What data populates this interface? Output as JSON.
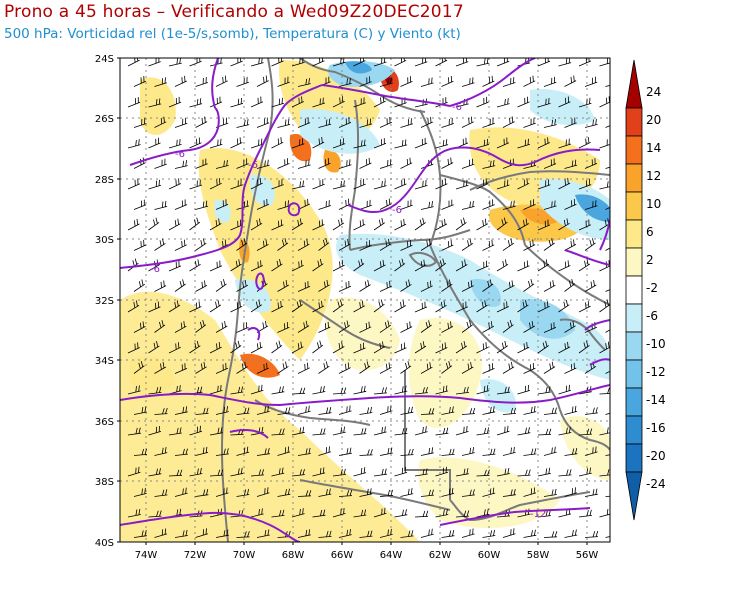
{
  "title": "Prono a 45 horas – Verificando a Wed09Z20DEC2017",
  "subtitle": "500 hPa: Vorticidad rel (1e-5/s,somb), Temperatura (C) y Viento (kt)",
  "map": {
    "lon_range": [
      -75,
      -55
    ],
    "lat_range": [
      -40,
      -24
    ],
    "lat_ticks": [
      "24S",
      "26S",
      "28S",
      "30S",
      "32S",
      "34S",
      "36S",
      "38S",
      "40S"
    ],
    "lon_ticks": [
      "74W",
      "72W",
      "70W",
      "68W",
      "66W",
      "64W",
      "62W",
      "60W",
      "58W",
      "56W"
    ],
    "temperature_contour_labels": [
      "-6",
      "-6",
      "-6",
      "-6",
      "-6",
      "-12"
    ]
  },
  "colorbar": {
    "labels": [
      "24",
      "20",
      "14",
      "12",
      "10",
      "6",
      "2",
      "-2",
      "-6",
      "-10",
      "-12",
      "-14",
      "-16",
      "-20",
      "-24"
    ],
    "colors": [
      "#a50000",
      "#e0401a",
      "#f4701c",
      "#f9a32a",
      "#fbc84a",
      "#fde98a",
      "#fdf7c4",
      "#ffffff",
      "#c8eef8",
      "#9ad8f2",
      "#72c2ea",
      "#4aa6de",
      "#2e8cd0",
      "#1c74c0",
      "#0e5ea8"
    ]
  }
}
